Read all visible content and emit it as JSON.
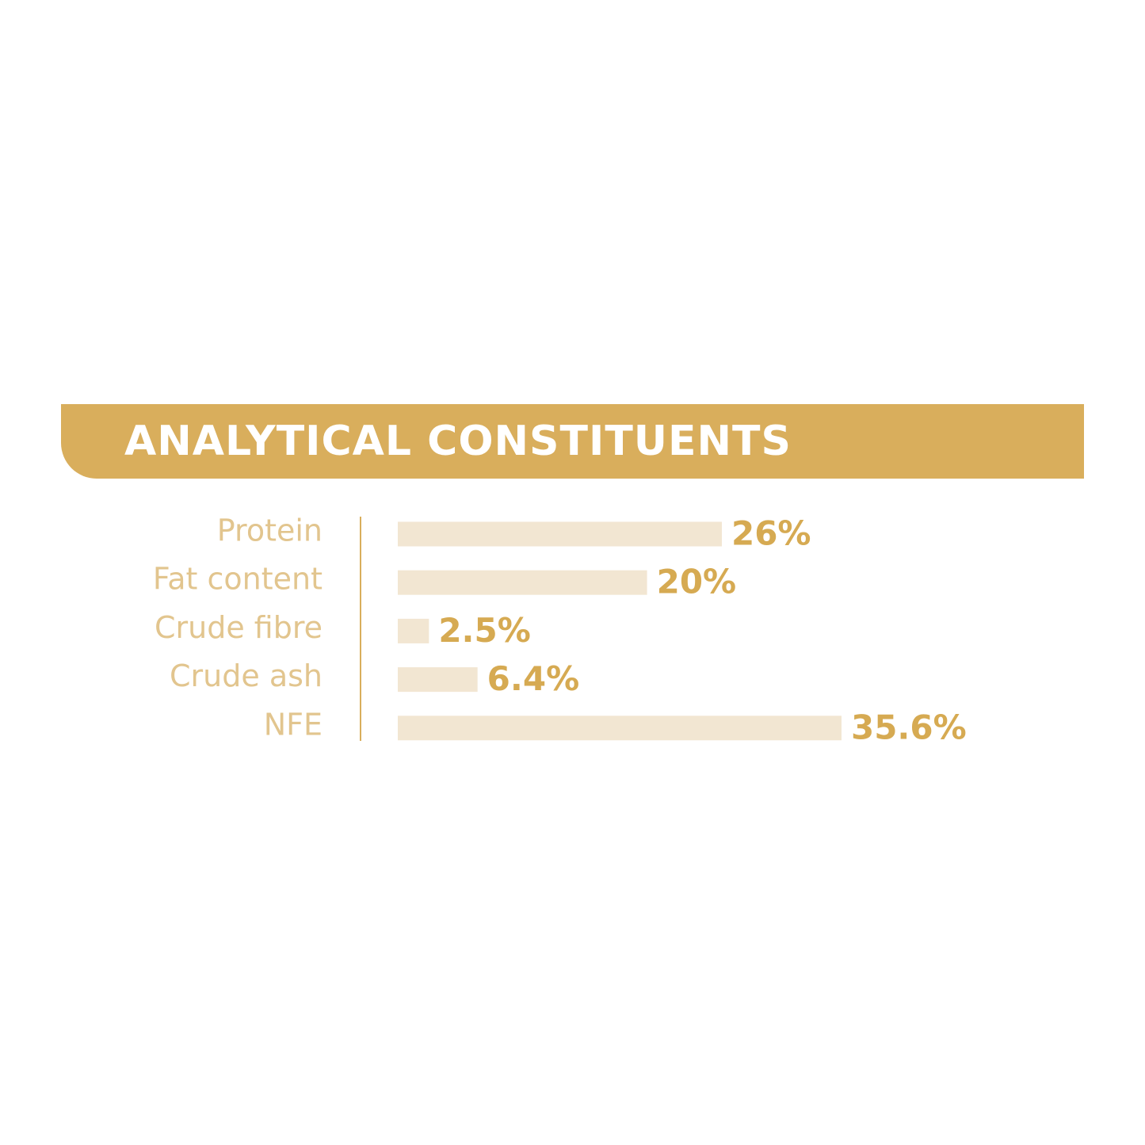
{
  "chart_data": {
    "type": "bar",
    "orientation": "horizontal",
    "title": "ANALYTICAL CONSTITUENTS",
    "categories": [
      "Protein",
      "Fat content",
      "Crude fibre",
      "Crude ash",
      "NFE"
    ],
    "values": [
      26,
      20,
      2.5,
      6.4,
      35.6
    ],
    "value_labels": [
      "26%",
      "20%",
      "2.5%",
      "6.4%",
      "35.6%"
    ],
    "color": "#f2e6d2"
  }
}
